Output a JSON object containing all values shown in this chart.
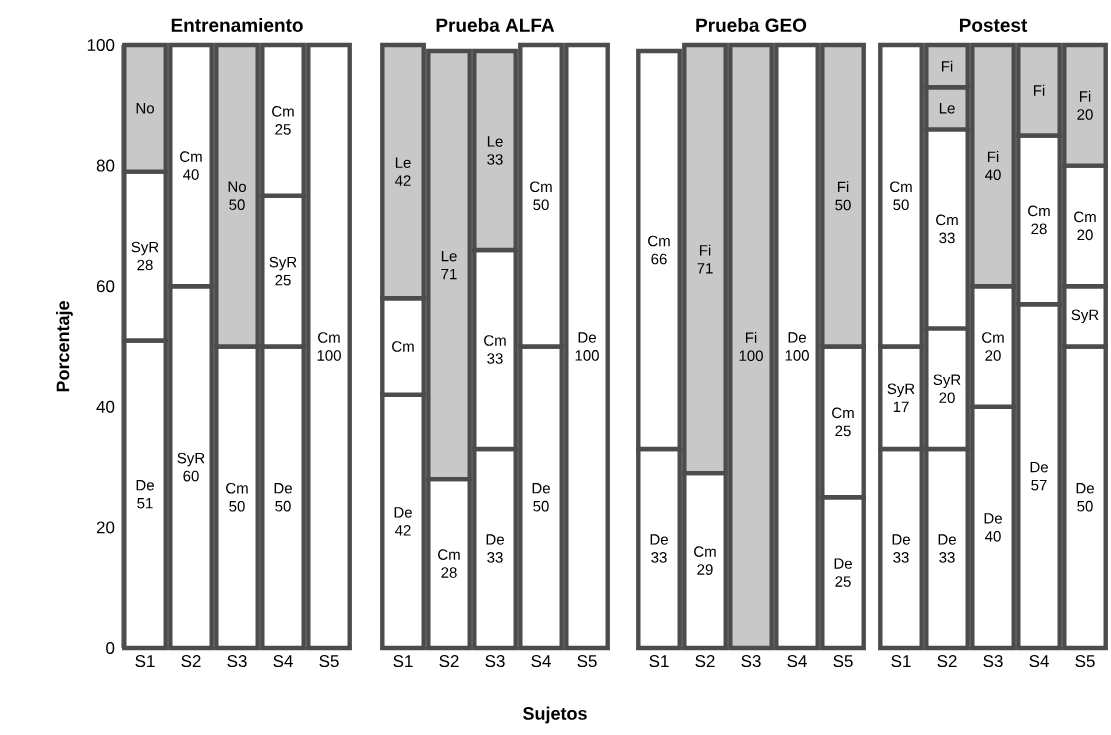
{
  "chart_data": [
    {
      "type": "bar",
      "title": "Entrenamiento",
      "ylabel": "Porcentaje",
      "categories": [
        "S1",
        "S2",
        "S3",
        "S4",
        "S5"
      ],
      "stacked": true,
      "ylim": [
        0,
        100
      ],
      "yticks": [
        0,
        20,
        40,
        60,
        80,
        100
      ],
      "series": [
        {
          "name": "De",
          "color": "#ffffff",
          "values": [
            51,
            null,
            null,
            50,
            null
          ],
          "value_labels": [
            "51",
            null,
            null,
            "50",
            null
          ]
        },
        {
          "name": "SyR",
          "color": "#ffffff",
          "values": [
            28,
            60,
            null,
            25,
            null
          ],
          "value_labels": [
            "28",
            "60",
            null,
            "25",
            null
          ]
        },
        {
          "name": "Cm",
          "color": "#ffffff",
          "values": [
            null,
            40,
            50,
            25,
            100
          ],
          "value_labels": [
            null,
            "40",
            "50",
            "25",
            "100"
          ]
        },
        {
          "name": "No",
          "color": "#c8c8c8",
          "values": [
            21,
            null,
            50,
            null,
            null
          ],
          "value_labels": [
            null,
            null,
            "50",
            null,
            null
          ]
        }
      ]
    },
    {
      "type": "bar",
      "title": "Prueba ALFA",
      "xlabel": "Sujetos",
      "categories": [
        "S1",
        "S2",
        "S3",
        "S4",
        "S5"
      ],
      "stacked": true,
      "ylim": [
        0,
        100
      ],
      "yticks": [
        0,
        20,
        40,
        60,
        80,
        100
      ],
      "tick_labels": "x",
      "series": [
        {
          "name": "De",
          "color": "#ffffff",
          "values": [
            42,
            null,
            33,
            50,
            100
          ],
          "value_labels": [
            "42",
            null,
            "33",
            "50",
            "100"
          ]
        },
        {
          "name": "Cm",
          "color": "#ffffff",
          "values": [
            16,
            28,
            33,
            50,
            null
          ],
          "value_labels": [
            null,
            "28",
            "33",
            "50",
            null
          ]
        },
        {
          "name": "Le",
          "color": "#c8c8c8",
          "values": [
            42,
            71,
            33,
            null,
            null
          ],
          "value_labels": [
            "42",
            "71",
            "33",
            null,
            null
          ]
        }
      ]
    },
    {
      "type": "bar",
      "title": "Prueba GEO",
      "categories": [
        "S1",
        "S2",
        "S3",
        "S4",
        "S5"
      ],
      "stacked": true,
      "ylim": [
        0,
        100
      ],
      "yticks": [
        0,
        20,
        40,
        60,
        80,
        100
      ],
      "tick_labels": "x",
      "series": [
        {
          "name": "De",
          "color": "#ffffff",
          "values": [
            33,
            null,
            null,
            100,
            25
          ],
          "value_labels": [
            "33",
            null,
            null,
            "100",
            "25"
          ]
        },
        {
          "name": "Cm",
          "color": "#ffffff",
          "values": [
            66,
            29,
            null,
            null,
            25
          ],
          "value_labels": [
            "66",
            "29",
            null,
            null,
            "25"
          ]
        },
        {
          "name": "Fi",
          "color": "#c8c8c8",
          "values": [
            null,
            71,
            100,
            null,
            50
          ],
          "value_labels": [
            null,
            "71",
            "100",
            null,
            "50"
          ]
        }
      ]
    },
    {
      "type": "bar",
      "title": "Postest",
      "categories": [
        "S1",
        "S2",
        "S3",
        "S4",
        "S5"
      ],
      "stacked": true,
      "ylim": [
        0,
        100
      ],
      "yticks": [
        0,
        20,
        40,
        60,
        80,
        100
      ],
      "tick_labels": "x",
      "series": [
        {
          "name": "De",
          "color": "#ffffff",
          "values": [
            33,
            33,
            40,
            57,
            50
          ],
          "value_labels": [
            "33",
            "33",
            "40",
            "57",
            "50"
          ]
        },
        {
          "name": "SyR",
          "color": "#ffffff",
          "values": [
            17,
            20,
            null,
            null,
            10
          ],
          "value_labels": [
            "17",
            "20",
            null,
            null,
            null
          ]
        },
        {
          "name": "Cm",
          "color": "#ffffff",
          "values": [
            50,
            33,
            20,
            28,
            20
          ],
          "value_labels": [
            "50",
            "33",
            "20",
            "28",
            "20"
          ]
        },
        {
          "name": "Le",
          "color": "#c8c8c8",
          "values": [
            null,
            7,
            null,
            null,
            null
          ],
          "value_labels": [
            null,
            null,
            null,
            null,
            null
          ]
        },
        {
          "name": "Fi",
          "color": "#c8c8c8",
          "values": [
            null,
            7,
            40,
            15,
            20
          ],
          "value_labels": [
            null,
            null,
            "40",
            null,
            "20"
          ]
        }
      ]
    }
  ]
}
